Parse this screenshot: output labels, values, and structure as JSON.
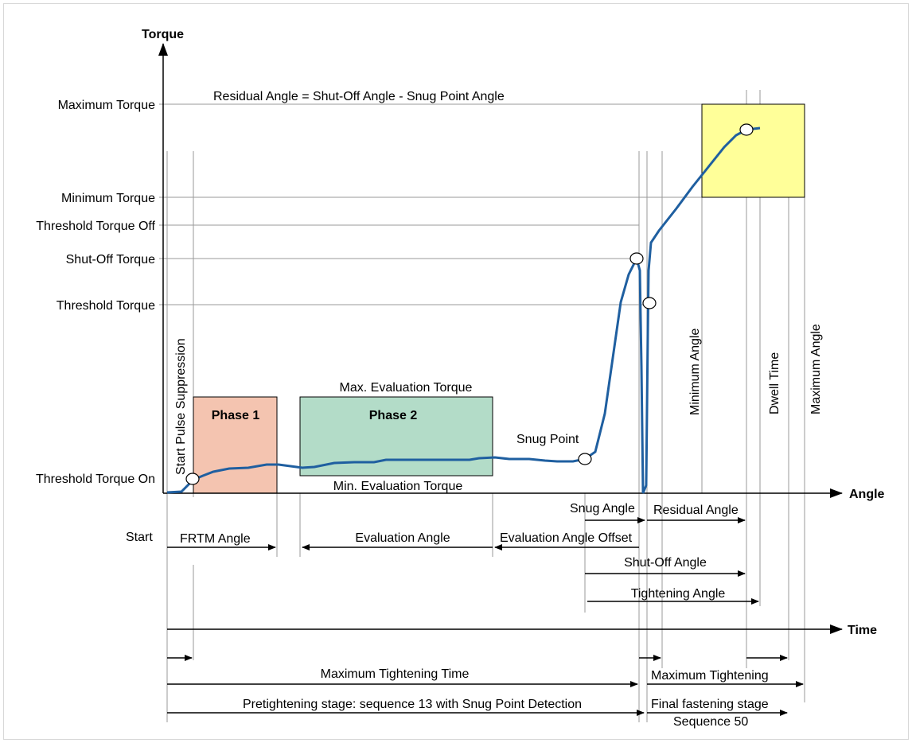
{
  "axes": {
    "torque_label": "Torque",
    "angle_label": "Angle",
    "time_label": "Time"
  },
  "torque_levels": {
    "maximum": "Maximum Torque",
    "minimum": "Minimum Torque",
    "threshold_off": "Threshold Torque Off",
    "shut_off": "Shut-Off Torque",
    "threshold": "Threshold Torque",
    "threshold_on": "Threshold Torque On"
  },
  "formula": "Residual Angle = Shut-Off Angle - Snug Point Angle",
  "phases": {
    "phase1": "Phase 1",
    "phase2": "Phase 2",
    "max_eval_torque": "Max. Evaluation Torque",
    "min_eval_torque": "Min. Evaluation Torque",
    "snug_point": "Snug Point"
  },
  "vertical_labels": {
    "start_pulse_suppression": "Start Pulse Suppression",
    "minimum_angle": "Minimum Angle",
    "dwell_time": "Dwell Time",
    "maximum_angle": "Maximum Angle"
  },
  "angle_arrows": {
    "start": "Start",
    "frtm_angle": "FRTM Angle",
    "evaluation_angle": "Evaluation Angle",
    "evaluation_angle_offset": "Evaluation Angle Offset",
    "snug_angle": "Snug Angle",
    "residual_angle": "Residual Angle",
    "shut_off_angle": "Shut-Off Angle",
    "tightening_angle": "Tightening Angle"
  },
  "time_arrows": {
    "max_tightening_time": "Maximum Tightening Time",
    "max_tightening": "Maximum Tightening",
    "pretightening": "Pretightening stage: sequence 13 with Snug Point Detection",
    "final_stage": "Final fastening stage",
    "sequence50": "Sequence 50"
  },
  "colors": {
    "curve": "#1f5fa0",
    "phase1_fill": "#f4c4b0",
    "phase2_fill": "#b3dcc8",
    "target_box_fill": "#ffff99",
    "grid_line": "#999999"
  }
}
